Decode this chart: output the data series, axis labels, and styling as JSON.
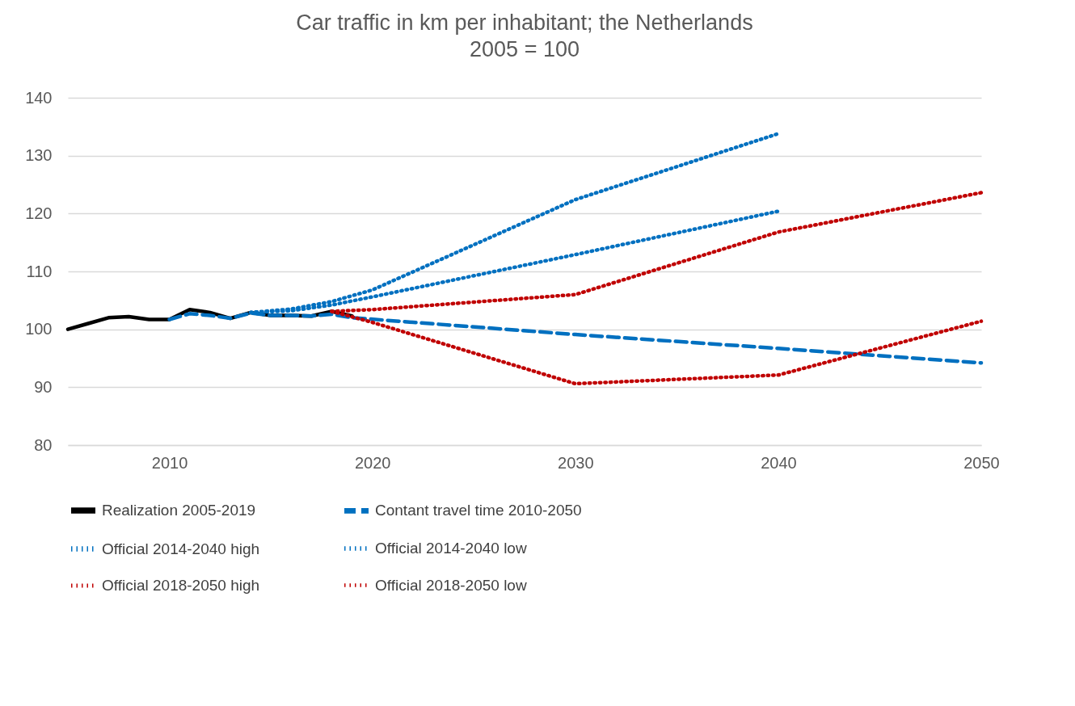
{
  "chart_data": {
    "type": "line",
    "title": "Car traffic in km per inhabitant; the Netherlands",
    "subtitle": "2005 = 100",
    "xlim": [
      2005,
      2050
    ],
    "xticks": [
      2010,
      2020,
      2030,
      2040,
      2050
    ],
    "ylim": [
      80,
      140
    ],
    "yticks": [
      80,
      90,
      100,
      110,
      120,
      130,
      140
    ],
    "grid": "y",
    "legend": "bottom",
    "marker": "none",
    "series": [
      {
        "name": "Realization 2005-2019",
        "color": "#000000",
        "line_style": "solid",
        "x": [
          2005,
          2006,
          2007,
          2008,
          2009,
          2010,
          2011,
          2012,
          2013,
          2014,
          2015,
          2016,
          2017,
          2018,
          2019
        ],
        "values": [
          100,
          101,
          102,
          102.2,
          101.7,
          101.7,
          103.4,
          102.9,
          101.9,
          102.9,
          102.4,
          102.4,
          102.3,
          103.1,
          102.3
        ]
      },
      {
        "name": "Contant travel time 2010-2050",
        "color": "#0070c0",
        "line_style": "dashed",
        "x": [
          2010,
          2011,
          2012,
          2013,
          2014,
          2015,
          2016,
          2017,
          2018,
          2019,
          2030,
          2040,
          2050
        ],
        "values": [
          101.7,
          102.7,
          102.4,
          101.9,
          102.8,
          102.4,
          102.4,
          102.3,
          102.6,
          102.0,
          99.1,
          96.7,
          94.2
        ]
      },
      {
        "name": "Official 2014-2040 high",
        "color": "#0070c0",
        "line_style": "dotted",
        "x": [
          2014,
          2016,
          2018,
          2020,
          2030,
          2040
        ],
        "values": [
          102.9,
          103.5,
          104.8,
          106.8,
          122.4,
          133.8
        ]
      },
      {
        "name": "Official 2014-2040 low",
        "color": "#0070c0",
        "line_style": "dotted",
        "x": [
          2014,
          2016,
          2018,
          2020,
          2030,
          2040
        ],
        "values": [
          102.9,
          103.2,
          104.2,
          105.6,
          112.9,
          120.4
        ]
      },
      {
        "name": "Official 2018-2050 high",
        "color": "#c00000",
        "line_style": "dotted",
        "x": [
          2018,
          2020,
          2030,
          2040,
          2050
        ],
        "values": [
          103.1,
          103.4,
          106,
          116.8,
          123.6
        ]
      },
      {
        "name": "Official 2018-2050 low",
        "color": "#c00000",
        "line_style": "dotted",
        "x": [
          2018,
          2020,
          2030,
          2040,
          2050
        ],
        "values": [
          103.1,
          101.2,
          90.6,
          92.1,
          101.4
        ]
      }
    ]
  }
}
